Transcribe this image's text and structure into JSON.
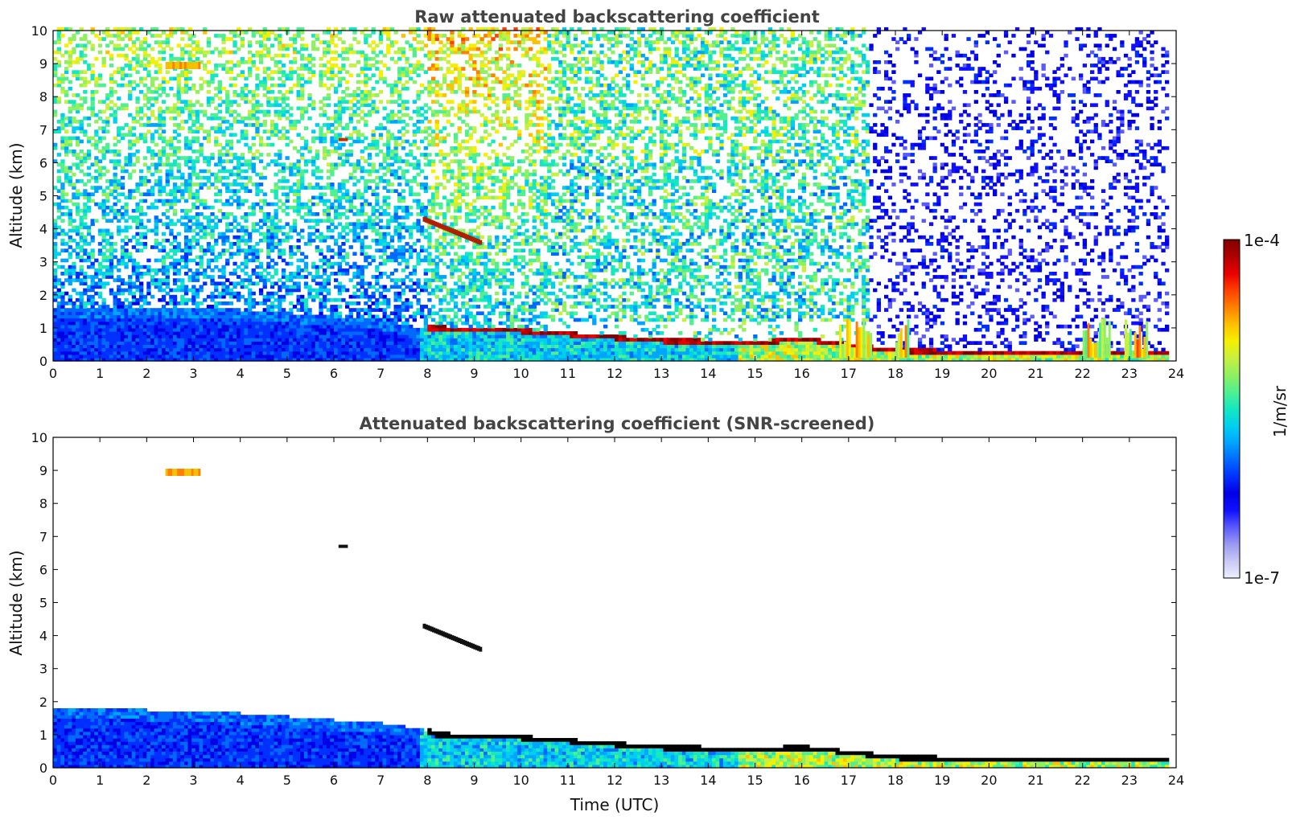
{
  "colorbar": {
    "max_label": "1e-4",
    "min_label": "1e-7",
    "unit_label": "1/m/sr",
    "colors": [
      "#eeeeff",
      "#c8c8f4",
      "#9a9af0",
      "#5a5aff",
      "#1010ff",
      "#0000e6",
      "#0030ff",
      "#006aff",
      "#00a5ff",
      "#00d0f0",
      "#15e8c0",
      "#50f090",
      "#90f060",
      "#c8f040",
      "#f4f000",
      "#ffc000",
      "#ff8000",
      "#ff4000",
      "#e80000",
      "#b00000",
      "#800000"
    ]
  },
  "chart_data": [
    {
      "type": "heatmap",
      "title": "Raw attenuated backscattering coefficient",
      "ylabel": "Altitude (km)",
      "xlabel": "",
      "xlim": [
        0,
        24
      ],
      "ylim": [
        0,
        10
      ],
      "xticks": [
        "0",
        "1",
        "2",
        "3",
        "4",
        "5",
        "6",
        "7",
        "8",
        "9",
        "10",
        "11",
        "12",
        "13",
        "14",
        "15",
        "16",
        "17",
        "18",
        "19",
        "20",
        "21",
        "22",
        "23",
        "24"
      ],
      "yticks": [
        "0",
        "1",
        "2",
        "3",
        "4",
        "5",
        "6",
        "7",
        "8",
        "9",
        "10"
      ],
      "features": {
        "cirrus_patch": {
          "time": [
            2.4,
            3.1
          ],
          "altitude": 8.9
        },
        "cloud_at_6_7km": {
          "time": [
            6.1,
            6.3
          ],
          "altitude": 6.7
        },
        "cloud_layer": {
          "start": [
            7.9,
            4.3
          ],
          "end": [
            9.1,
            3.6
          ]
        },
        "boundary_layer_top_km": [
          [
            0,
            1.6
          ],
          [
            4,
            1.5
          ],
          [
            7,
            1.2
          ],
          [
            8,
            0.9
          ],
          [
            10,
            0.8
          ],
          [
            13,
            0.5
          ],
          [
            15,
            0.45
          ],
          [
            16,
            0.55
          ],
          [
            17.3,
            0.3
          ],
          [
            18,
            0.2
          ],
          [
            20,
            0.15
          ],
          [
            24,
            0.1
          ]
        ],
        "low_clouds_time_h": [
          [
            16.8,
            17.5
          ],
          [
            18.0,
            18.3
          ],
          [
            22.0,
            22.6
          ],
          [
            22.9,
            23.4
          ]
        ],
        "max_data_time_h": 23.8
      }
    },
    {
      "type": "heatmap",
      "title": "Attenuated backscattering coefficient (SNR-screened)",
      "ylabel": "Altitude (km)",
      "xlabel": "Time (UTC)",
      "xlim": [
        0,
        24
      ],
      "ylim": [
        0,
        10
      ],
      "xticks": [
        "0",
        "1",
        "2",
        "3",
        "4",
        "5",
        "6",
        "7",
        "8",
        "9",
        "10",
        "11",
        "12",
        "13",
        "14",
        "15",
        "16",
        "17",
        "18",
        "19",
        "20",
        "21",
        "22",
        "23",
        "24"
      ],
      "yticks": [
        "0",
        "1",
        "2",
        "3",
        "4",
        "5",
        "6",
        "7",
        "8",
        "9",
        "10"
      ],
      "features": {
        "cirrus_patch": {
          "time": [
            2.4,
            3.1
          ],
          "altitude": 8.9
        },
        "cloud_at_6_7km": {
          "time": [
            6.1,
            6.3
          ],
          "altitude": 6.7
        },
        "cloud_layer": {
          "start": [
            7.9,
            4.3
          ],
          "end": [
            9.1,
            3.6
          ]
        },
        "aerosol_layer_top_km": [
          [
            0,
            1.8
          ],
          [
            4,
            1.6
          ],
          [
            7,
            1.3
          ],
          [
            7.9,
            1.1
          ],
          [
            8.1,
            0.9
          ],
          [
            10,
            0.8
          ],
          [
            13,
            0.5
          ],
          [
            15,
            0.45
          ],
          [
            16,
            0.5
          ],
          [
            17.3,
            0.3
          ],
          [
            18,
            0.2
          ],
          [
            20,
            0.15
          ],
          [
            24,
            0.1
          ]
        ],
        "max_data_time_h": 23.8
      }
    }
  ]
}
